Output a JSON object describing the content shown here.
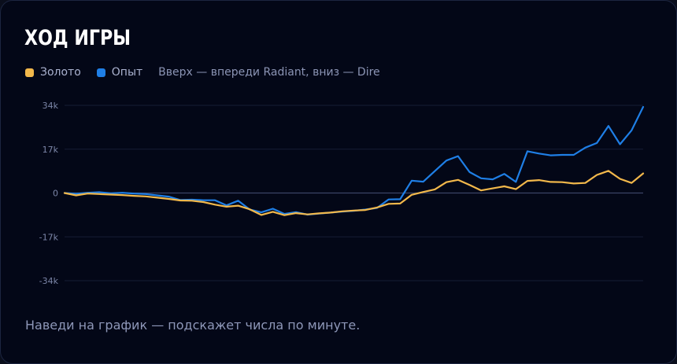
{
  "card": {
    "title": "ХОД ИГРЫ",
    "hint": "Наведи на график — подскажет числа по минуте."
  },
  "legend": {
    "items": [
      {
        "label": "Золото",
        "color": "#f2b84b"
      },
      {
        "label": "Опыт",
        "color": "#1f7fe6"
      }
    ],
    "note": "Вверх — впереди Radiant, вниз — Dire"
  },
  "chart_data": {
    "type": "line",
    "title": "ХОД ИГРЫ",
    "xlabel": "",
    "ylabel": "",
    "ylim": [
      -34000,
      34000
    ],
    "yticks": [
      34000,
      17000,
      0,
      -17000,
      -34000
    ],
    "ytick_labels": [
      "34k",
      "17k",
      "0",
      "-17k",
      "-34k"
    ],
    "grid": true,
    "legend_position": "top-left",
    "x": [
      0,
      1,
      2,
      3,
      4,
      5,
      6,
      7,
      8,
      9,
      10,
      11,
      12,
      13,
      14,
      15,
      16,
      17,
      18,
      19,
      20,
      21,
      22,
      23,
      24,
      25,
      26,
      27,
      28,
      29,
      30,
      31,
      32,
      33,
      34,
      35,
      36,
      37,
      38,
      39,
      40,
      41,
      42,
      43,
      44,
      45,
      46,
      47,
      48,
      49,
      50
    ],
    "series": [
      {
        "name": "Золото",
        "color": "#f2b84b",
        "values": [
          0,
          -900,
          -200,
          -400,
          -600,
          -800,
          -1100,
          -1300,
          -1800,
          -2300,
          -2900,
          -3000,
          -3500,
          -4500,
          -5300,
          -4900,
          -6300,
          -8500,
          -7300,
          -8600,
          -7800,
          -8300,
          -7900,
          -7600,
          -7100,
          -6800,
          -6600,
          -5600,
          -4200,
          -4100,
          -700,
          400,
          1400,
          4200,
          5100,
          3100,
          1000,
          1800,
          2600,
          1500,
          4700,
          5000,
          4300,
          4200,
          3700,
          3900,
          7000,
          8600,
          5500,
          3900,
          7600
        ]
      },
      {
        "name": "Опыт",
        "color": "#1f7fe6",
        "values": [
          0,
          -300,
          100,
          300,
          -100,
          100,
          -200,
          -400,
          -900,
          -1400,
          -2700,
          -2600,
          -2800,
          -2800,
          -4800,
          -3000,
          -6400,
          -7500,
          -6100,
          -8100,
          -7400,
          -8400,
          -8000,
          -7600,
          -7200,
          -6900,
          -6400,
          -5800,
          -2500,
          -2400,
          4800,
          4400,
          8500,
          12600,
          14300,
          8100,
          5700,
          5300,
          7400,
          4300,
          16200,
          15300,
          14600,
          14800,
          14800,
          17600,
          19400,
          26000,
          18900,
          24300,
          33400
        ]
      }
    ]
  }
}
